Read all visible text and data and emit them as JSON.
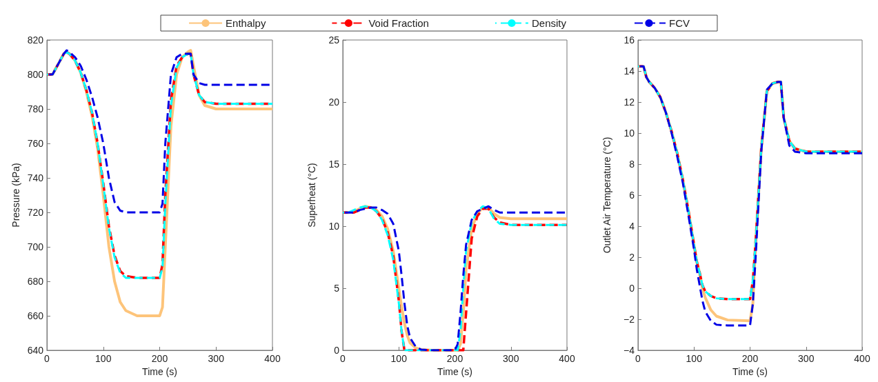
{
  "chart_data": [
    {
      "type": "line",
      "xlabel": "Time (s)",
      "ylabel": "Pressure (kPa)",
      "xlim": [
        0,
        400
      ],
      "xticks": [
        0,
        100,
        200,
        300,
        400
      ],
      "ylim": [
        640,
        820
      ],
      "yticks": [
        640,
        660,
        680,
        700,
        720,
        740,
        760,
        780,
        800,
        820
      ],
      "grid": false,
      "legend": "top",
      "marker": "none",
      "x": [
        0,
        10,
        20,
        30,
        35,
        40,
        50,
        60,
        70,
        80,
        90,
        100,
        110,
        120,
        130,
        140,
        160,
        180,
        200,
        205,
        210,
        220,
        230,
        240,
        250,
        255,
        260,
        270,
        280,
        300,
        350,
        400
      ],
      "series": [
        {
          "name": "Enthalpy",
          "color": "#fdc47a",
          "line_style": "solid",
          "values": [
            800,
            800,
            806,
            812,
            813,
            812,
            808,
            801,
            790,
            776,
            757,
            730,
            700,
            680,
            668,
            663,
            660,
            660,
            660,
            665,
            700,
            770,
            800,
            810,
            813,
            814,
            805,
            788,
            782,
            780,
            780,
            780
          ]
        },
        {
          "name": "Void Fraction",
          "color": "#ff0000",
          "line_style": "dashed",
          "values": [
            800,
            800,
            806,
            812,
            813,
            812,
            808,
            801,
            791,
            778,
            760,
            737,
            712,
            695,
            686,
            683,
            682,
            682,
            682,
            690,
            730,
            785,
            805,
            810,
            812,
            812,
            800,
            788,
            784,
            783,
            783,
            783
          ]
        },
        {
          "name": "Density",
          "color": "#00ffff",
          "line_style": "dashed",
          "values": [
            800,
            800,
            806,
            812,
            813,
            812,
            808,
            801,
            791,
            778,
            760,
            736,
            711,
            694,
            685,
            682,
            682,
            682,
            682,
            688,
            725,
            782,
            804,
            810,
            812,
            812,
            800,
            788,
            784,
            783,
            783,
            783
          ]
        },
        {
          "name": "FCV",
          "color": "#0000e6",
          "line_style": "dashed",
          "values": [
            800,
            800,
            806,
            812,
            814,
            813,
            810,
            805,
            797,
            787,
            775,
            760,
            740,
            726,
            721,
            720,
            720,
            720,
            720,
            725,
            760,
            800,
            810,
            812,
            812,
            812,
            800,
            795,
            794,
            794,
            794,
            794
          ]
        }
      ]
    },
    {
      "type": "line",
      "xlabel": "Time (s)",
      "ylabel": "Superheat (°C)",
      "xlim": [
        0,
        400
      ],
      "xticks": [
        0,
        100,
        200,
        300,
        400
      ],
      "ylim": [
        0,
        25
      ],
      "yticks": [
        0,
        5,
        10,
        15,
        20,
        25
      ],
      "grid": false,
      "marker": "none",
      "x": [
        0,
        10,
        20,
        30,
        40,
        50,
        60,
        70,
        80,
        90,
        100,
        105,
        110,
        115,
        120,
        130,
        140,
        160,
        200,
        205,
        210,
        215,
        220,
        230,
        240,
        250,
        260,
        270,
        280,
        300,
        350,
        400
      ],
      "series": [
        {
          "color": "#fdc47a",
          "line_style": "solid",
          "values": [
            11.1,
            11.1,
            11.2,
            11.4,
            11.6,
            11.5,
            11.3,
            10.8,
            9.8,
            8,
            5,
            3.5,
            2.2,
            1.2,
            0.6,
            0.2,
            0.05,
            0,
            0,
            0,
            0.5,
            3,
            6.5,
            9.8,
            11,
            11.5,
            11.5,
            11,
            10.7,
            10.6,
            10.6,
            10.6
          ]
        },
        {
          "color": "#ff0000",
          "line_style": "dashed",
          "values": [
            11.1,
            11.1,
            11.1,
            11.3,
            11.5,
            11.5,
            11.2,
            10.6,
            9.5,
            7.6,
            4,
            1.5,
            0,
            0,
            0,
            0,
            0,
            0,
            0,
            0,
            0,
            0,
            3,
            9,
            10.8,
            11.4,
            11.4,
            10.7,
            10.3,
            10.1,
            10.1,
            10.1
          ]
        },
        {
          "color": "#00ffff",
          "line_style": "dashed",
          "values": [
            11.1,
            11.1,
            11.3,
            11.5,
            11.6,
            11.5,
            11.2,
            10.5,
            9.3,
            7.3,
            3.8,
            1.5,
            0,
            0,
            0,
            0,
            0,
            0,
            0,
            0,
            1.5,
            5,
            8,
            10.3,
            11.2,
            11.6,
            11.4,
            10.6,
            10.2,
            10.1,
            10.1,
            10.1
          ]
        },
        {
          "color": "#0000e6",
          "line_style": "dashed",
          "values": [
            11.1,
            11.1,
            11.1,
            11.3,
            11.4,
            11.5,
            11.5,
            11.3,
            11,
            10.2,
            8,
            6,
            3.8,
            2,
            1,
            0.3,
            0.05,
            0,
            0,
            0.5,
            3,
            6,
            8.5,
            10.5,
            11.2,
            11.4,
            11.6,
            11.3,
            11.1,
            11.1,
            11.1,
            11.1
          ]
        }
      ]
    },
    {
      "type": "line",
      "xlabel": "Time (s)",
      "ylabel": "Outlet Air Temperature (°C)",
      "xlim": [
        0,
        400
      ],
      "xticks": [
        0,
        100,
        200,
        300,
        400
      ],
      "ylim": [
        -4,
        16
      ],
      "yticks": [
        {
          "value": -4,
          "label": "−4"
        },
        {
          "value": -2,
          "label": "−2"
        },
        0,
        2,
        4,
        6,
        8,
        10,
        12,
        14,
        16
      ],
      "grid": false,
      "marker": "none",
      "x": [
        0,
        10,
        15,
        20,
        30,
        40,
        50,
        60,
        70,
        80,
        90,
        100,
        105,
        110,
        115,
        120,
        130,
        140,
        160,
        200,
        205,
        210,
        220,
        230,
        240,
        250,
        255,
        260,
        270,
        280,
        300,
        350,
        400
      ],
      "series": [
        {
          "color": "#fdc47a",
          "line_style": "solid",
          "values": [
            14.3,
            14.3,
            13.6,
            13.3,
            12.9,
            12.3,
            11.3,
            10.1,
            8.7,
            7,
            5,
            2.8,
            1.7,
            1,
            0,
            -0.6,
            -1.4,
            -1.8,
            -2.05,
            -2.1,
            -1,
            3,
            9,
            12.7,
            13.2,
            13.3,
            13.3,
            11,
            9.5,
            9,
            8.8,
            8.8,
            8.8
          ]
        },
        {
          "color": "#ff0000",
          "line_style": "dashed",
          "values": [
            14.3,
            14.3,
            13.6,
            13.3,
            12.9,
            12.3,
            11.3,
            10.1,
            8.7,
            7,
            5,
            2.8,
            1.7,
            1,
            0.2,
            -0.2,
            -0.5,
            -0.65,
            -0.7,
            -0.7,
            0.5,
            3,
            9,
            12.7,
            13.2,
            13.3,
            13.3,
            11,
            9.5,
            9,
            8.8,
            8.8,
            8.8
          ]
        },
        {
          "color": "#00ffff",
          "line_style": "dashed",
          "values": [
            14.3,
            14.3,
            13.6,
            13.3,
            12.9,
            12.3,
            11.3,
            10.1,
            8.7,
            7,
            5,
            2.8,
            1.7,
            1,
            0.2,
            -0.2,
            -0.5,
            -0.65,
            -0.7,
            -0.7,
            0.5,
            3,
            9,
            12.7,
            13.2,
            13.3,
            13.3,
            11,
            9.5,
            9,
            8.8,
            8.8,
            8.8
          ]
        },
        {
          "color": "#0000e6",
          "line_style": "dashed",
          "values": [
            14.3,
            14.3,
            13.6,
            13.3,
            12.9,
            12.3,
            11.3,
            10,
            8.5,
            6.8,
            4.7,
            2.5,
            1.2,
            0.2,
            -0.8,
            -1.5,
            -2.1,
            -2.35,
            -2.4,
            -2.4,
            -1,
            2,
            8.8,
            12.8,
            13.2,
            13.3,
            13.3,
            11,
            9.2,
            8.8,
            8.7,
            8.7,
            8.7
          ]
        }
      ]
    }
  ]
}
